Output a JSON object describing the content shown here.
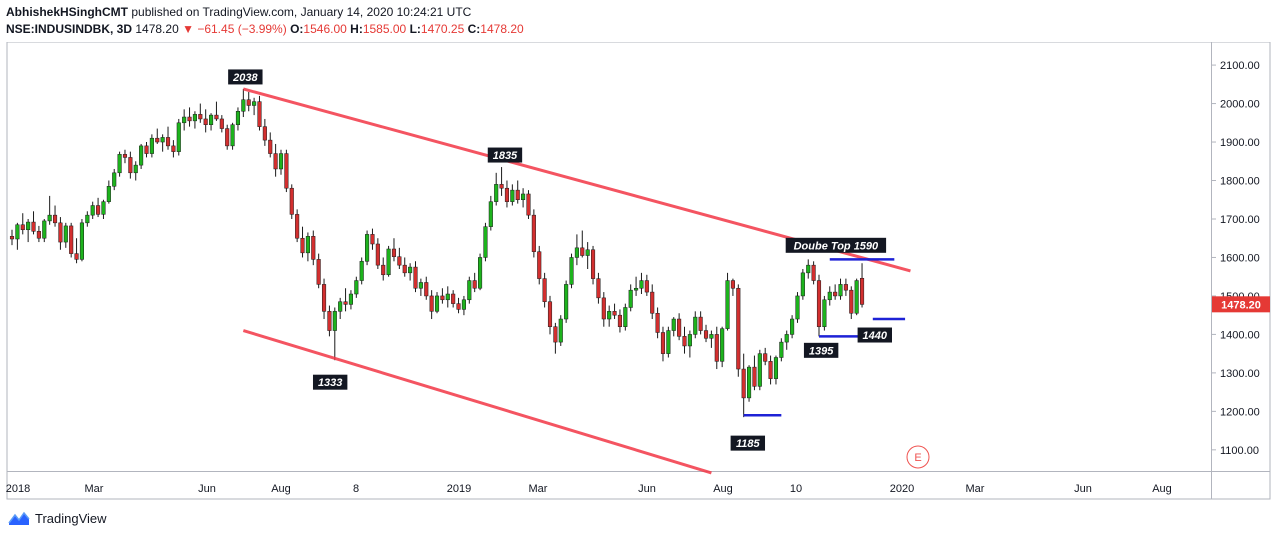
{
  "header": {
    "author": "AbhishekHSinghCMT",
    "published_text": "published on TradingView.com, January 14, 2020 10:24:21 UTC",
    "symbol": "NSE:INDUSINDBK, 3D",
    "last": "1478.20",
    "change_arrow": "▼",
    "change": "−61.45 (−3.99%)",
    "o_label": "O:",
    "o_value": "1546.00",
    "h_label": "H:",
    "h_value": "1585.00",
    "l_label": "L:",
    "l_value": "1470.25",
    "c_label": "C:",
    "c_value": "1478.20"
  },
  "footer": {
    "brand": "TradingView"
  },
  "colors": {
    "up": "#26a69a",
    "up_bright": "#1db31d",
    "down": "#d32f2f",
    "trendline": "#f23645",
    "support": "#1e22d6",
    "badge_bg": "#131722",
    "price_tag": "#e53935"
  },
  "chart_data": {
    "type": "candlestick",
    "ylim": [
      1045,
      2160
    ],
    "y_ticks": [
      "2100.00",
      "2000.00",
      "1900.00",
      "1800.00",
      "1700.00",
      "1600.00",
      "1500.00",
      "1400.00",
      "1300.00",
      "1200.00",
      "1100.00"
    ],
    "x_ticks": [
      "2018",
      "Mar",
      "Jun",
      "Aug",
      "8",
      "2019",
      "Mar",
      "Jun",
      "Aug",
      "10",
      "2020",
      "Mar",
      "Jun",
      "Aug"
    ],
    "last_price_label": "1478.20",
    "candles": [
      {
        "o": 1655,
        "h": 1672,
        "l": 1632,
        "c": 1648
      },
      {
        "o": 1648,
        "h": 1690,
        "l": 1620,
        "c": 1685
      },
      {
        "o": 1685,
        "h": 1715,
        "l": 1660,
        "c": 1672
      },
      {
        "o": 1672,
        "h": 1700,
        "l": 1640,
        "c": 1692
      },
      {
        "o": 1692,
        "h": 1720,
        "l": 1660,
        "c": 1668
      },
      {
        "o": 1668,
        "h": 1682,
        "l": 1640,
        "c": 1650
      },
      {
        "o": 1650,
        "h": 1700,
        "l": 1640,
        "c": 1695
      },
      {
        "o": 1695,
        "h": 1760,
        "l": 1685,
        "c": 1710
      },
      {
        "o": 1710,
        "h": 1735,
        "l": 1680,
        "c": 1690
      },
      {
        "o": 1690,
        "h": 1705,
        "l": 1620,
        "c": 1640
      },
      {
        "o": 1640,
        "h": 1690,
        "l": 1625,
        "c": 1682
      },
      {
        "o": 1682,
        "h": 1690,
        "l": 1600,
        "c": 1610
      },
      {
        "o": 1610,
        "h": 1650,
        "l": 1585,
        "c": 1595
      },
      {
        "o": 1595,
        "h": 1700,
        "l": 1590,
        "c": 1690
      },
      {
        "o": 1690,
        "h": 1720,
        "l": 1680,
        "c": 1710
      },
      {
        "o": 1710,
        "h": 1745,
        "l": 1700,
        "c": 1735
      },
      {
        "o": 1735,
        "h": 1755,
        "l": 1705,
        "c": 1712
      },
      {
        "o": 1712,
        "h": 1750,
        "l": 1700,
        "c": 1745
      },
      {
        "o": 1745,
        "h": 1800,
        "l": 1740,
        "c": 1785
      },
      {
        "o": 1785,
        "h": 1830,
        "l": 1775,
        "c": 1820
      },
      {
        "o": 1820,
        "h": 1875,
        "l": 1810,
        "c": 1868
      },
      {
        "o": 1868,
        "h": 1880,
        "l": 1845,
        "c": 1860
      },
      {
        "o": 1860,
        "h": 1875,
        "l": 1805,
        "c": 1820
      },
      {
        "o": 1820,
        "h": 1850,
        "l": 1800,
        "c": 1840
      },
      {
        "o": 1840,
        "h": 1895,
        "l": 1830,
        "c": 1890
      },
      {
        "o": 1890,
        "h": 1900,
        "l": 1860,
        "c": 1870
      },
      {
        "o": 1870,
        "h": 1920,
        "l": 1860,
        "c": 1910
      },
      {
        "o": 1910,
        "h": 1935,
        "l": 1895,
        "c": 1900
      },
      {
        "o": 1900,
        "h": 1920,
        "l": 1875,
        "c": 1912
      },
      {
        "o": 1912,
        "h": 1940,
        "l": 1880,
        "c": 1890
      },
      {
        "o": 1890,
        "h": 1905,
        "l": 1860,
        "c": 1875
      },
      {
        "o": 1875,
        "h": 1960,
        "l": 1865,
        "c": 1950
      },
      {
        "o": 1950,
        "h": 1985,
        "l": 1930,
        "c": 1965
      },
      {
        "o": 1965,
        "h": 1990,
        "l": 1940,
        "c": 1955
      },
      {
        "o": 1955,
        "h": 1980,
        "l": 1935,
        "c": 1972
      },
      {
        "o": 1972,
        "h": 2000,
        "l": 1950,
        "c": 1960
      },
      {
        "o": 1960,
        "h": 1985,
        "l": 1925,
        "c": 1945
      },
      {
        "o": 1945,
        "h": 1975,
        "l": 1930,
        "c": 1970
      },
      {
        "o": 1970,
        "h": 2005,
        "l": 1955,
        "c": 1960
      },
      {
        "o": 1960,
        "h": 1970,
        "l": 1925,
        "c": 1935
      },
      {
        "o": 1935,
        "h": 1945,
        "l": 1880,
        "c": 1890
      },
      {
        "o": 1890,
        "h": 1950,
        "l": 1880,
        "c": 1945
      },
      {
        "o": 1945,
        "h": 1990,
        "l": 1930,
        "c": 1980
      },
      {
        "o": 1980,
        "h": 2038,
        "l": 1965,
        "c": 2010
      },
      {
        "o": 2010,
        "h": 2030,
        "l": 1980,
        "c": 1995
      },
      {
        "o": 1995,
        "h": 2015,
        "l": 1970,
        "c": 2005
      },
      {
        "o": 2005,
        "h": 2020,
        "l": 1930,
        "c": 1940
      },
      {
        "o": 1940,
        "h": 1960,
        "l": 1890,
        "c": 1905
      },
      {
        "o": 1905,
        "h": 1925,
        "l": 1860,
        "c": 1870
      },
      {
        "o": 1870,
        "h": 1895,
        "l": 1810,
        "c": 1830
      },
      {
        "o": 1830,
        "h": 1880,
        "l": 1815,
        "c": 1870
      },
      {
        "o": 1870,
        "h": 1880,
        "l": 1770,
        "c": 1780
      },
      {
        "o": 1780,
        "h": 1790,
        "l": 1700,
        "c": 1712
      },
      {
        "o": 1712,
        "h": 1725,
        "l": 1640,
        "c": 1650
      },
      {
        "o": 1650,
        "h": 1680,
        "l": 1600,
        "c": 1612
      },
      {
        "o": 1612,
        "h": 1665,
        "l": 1590,
        "c": 1655
      },
      {
        "o": 1655,
        "h": 1670,
        "l": 1580,
        "c": 1595
      },
      {
        "o": 1595,
        "h": 1610,
        "l": 1520,
        "c": 1530
      },
      {
        "o": 1530,
        "h": 1545,
        "l": 1440,
        "c": 1460
      },
      {
        "o": 1460,
        "h": 1475,
        "l": 1395,
        "c": 1410
      },
      {
        "o": 1410,
        "h": 1470,
        "l": 1333,
        "c": 1460
      },
      {
        "o": 1460,
        "h": 1495,
        "l": 1440,
        "c": 1485
      },
      {
        "o": 1485,
        "h": 1520,
        "l": 1460,
        "c": 1478
      },
      {
        "o": 1478,
        "h": 1515,
        "l": 1465,
        "c": 1505
      },
      {
        "o": 1505,
        "h": 1550,
        "l": 1495,
        "c": 1540
      },
      {
        "o": 1540,
        "h": 1600,
        "l": 1530,
        "c": 1590
      },
      {
        "o": 1590,
        "h": 1670,
        "l": 1580,
        "c": 1660
      },
      {
        "o": 1660,
        "h": 1675,
        "l": 1620,
        "c": 1635
      },
      {
        "o": 1635,
        "h": 1650,
        "l": 1570,
        "c": 1580
      },
      {
        "o": 1580,
        "h": 1600,
        "l": 1540,
        "c": 1555
      },
      {
        "o": 1555,
        "h": 1630,
        "l": 1550,
        "c": 1622
      },
      {
        "o": 1622,
        "h": 1650,
        "l": 1590,
        "c": 1602
      },
      {
        "o": 1602,
        "h": 1625,
        "l": 1570,
        "c": 1580
      },
      {
        "o": 1580,
        "h": 1600,
        "l": 1550,
        "c": 1560
      },
      {
        "o": 1560,
        "h": 1585,
        "l": 1540,
        "c": 1575
      },
      {
        "o": 1575,
        "h": 1590,
        "l": 1510,
        "c": 1520
      },
      {
        "o": 1520,
        "h": 1545,
        "l": 1500,
        "c": 1535
      },
      {
        "o": 1535,
        "h": 1550,
        "l": 1490,
        "c": 1500
      },
      {
        "o": 1500,
        "h": 1515,
        "l": 1440,
        "c": 1460
      },
      {
        "o": 1460,
        "h": 1510,
        "l": 1455,
        "c": 1500
      },
      {
        "o": 1500,
        "h": 1520,
        "l": 1480,
        "c": 1490
      },
      {
        "o": 1490,
        "h": 1525,
        "l": 1470,
        "c": 1505
      },
      {
        "o": 1505,
        "h": 1515,
        "l": 1470,
        "c": 1480
      },
      {
        "o": 1480,
        "h": 1495,
        "l": 1455,
        "c": 1465
      },
      {
        "o": 1465,
        "h": 1500,
        "l": 1450,
        "c": 1490
      },
      {
        "o": 1490,
        "h": 1550,
        "l": 1480,
        "c": 1540
      },
      {
        "o": 1540,
        "h": 1560,
        "l": 1510,
        "c": 1520
      },
      {
        "o": 1520,
        "h": 1610,
        "l": 1515,
        "c": 1600
      },
      {
        "o": 1600,
        "h": 1690,
        "l": 1590,
        "c": 1680
      },
      {
        "o": 1680,
        "h": 1760,
        "l": 1670,
        "c": 1745
      },
      {
        "o": 1745,
        "h": 1820,
        "l": 1735,
        "c": 1790
      },
      {
        "o": 1790,
        "h": 1835,
        "l": 1760,
        "c": 1780
      },
      {
        "o": 1780,
        "h": 1800,
        "l": 1730,
        "c": 1745
      },
      {
        "o": 1745,
        "h": 1790,
        "l": 1735,
        "c": 1775
      },
      {
        "o": 1775,
        "h": 1800,
        "l": 1740,
        "c": 1750
      },
      {
        "o": 1750,
        "h": 1780,
        "l": 1730,
        "c": 1765
      },
      {
        "o": 1765,
        "h": 1775,
        "l": 1700,
        "c": 1710
      },
      {
        "o": 1710,
        "h": 1725,
        "l": 1600,
        "c": 1615
      },
      {
        "o": 1615,
        "h": 1630,
        "l": 1530,
        "c": 1545
      },
      {
        "o": 1545,
        "h": 1560,
        "l": 1470,
        "c": 1485
      },
      {
        "o": 1485,
        "h": 1500,
        "l": 1400,
        "c": 1420
      },
      {
        "o": 1420,
        "h": 1430,
        "l": 1350,
        "c": 1380
      },
      {
        "o": 1380,
        "h": 1450,
        "l": 1370,
        "c": 1440
      },
      {
        "o": 1440,
        "h": 1540,
        "l": 1430,
        "c": 1530
      },
      {
        "o": 1530,
        "h": 1610,
        "l": 1520,
        "c": 1600
      },
      {
        "o": 1600,
        "h": 1660,
        "l": 1580,
        "c": 1625
      },
      {
        "o": 1625,
        "h": 1670,
        "l": 1600,
        "c": 1605
      },
      {
        "o": 1605,
        "h": 1640,
        "l": 1570,
        "c": 1620
      },
      {
        "o": 1620,
        "h": 1630,
        "l": 1530,
        "c": 1545
      },
      {
        "o": 1545,
        "h": 1560,
        "l": 1480,
        "c": 1495
      },
      {
        "o": 1495,
        "h": 1510,
        "l": 1420,
        "c": 1440
      },
      {
        "o": 1440,
        "h": 1475,
        "l": 1420,
        "c": 1460
      },
      {
        "o": 1460,
        "h": 1480,
        "l": 1440,
        "c": 1450
      },
      {
        "o": 1450,
        "h": 1465,
        "l": 1405,
        "c": 1420
      },
      {
        "o": 1420,
        "h": 1480,
        "l": 1410,
        "c": 1470
      },
      {
        "o": 1470,
        "h": 1530,
        "l": 1460,
        "c": 1515
      },
      {
        "o": 1515,
        "h": 1550,
        "l": 1500,
        "c": 1520
      },
      {
        "o": 1520,
        "h": 1560,
        "l": 1505,
        "c": 1540
      },
      {
        "o": 1540,
        "h": 1555,
        "l": 1500,
        "c": 1510
      },
      {
        "o": 1510,
        "h": 1530,
        "l": 1440,
        "c": 1455
      },
      {
        "o": 1455,
        "h": 1470,
        "l": 1390,
        "c": 1405
      },
      {
        "o": 1405,
        "h": 1420,
        "l": 1330,
        "c": 1350
      },
      {
        "o": 1350,
        "h": 1420,
        "l": 1340,
        "c": 1410
      },
      {
        "o": 1410,
        "h": 1445,
        "l": 1395,
        "c": 1440
      },
      {
        "o": 1440,
        "h": 1455,
        "l": 1385,
        "c": 1395
      },
      {
        "o": 1395,
        "h": 1420,
        "l": 1350,
        "c": 1370
      },
      {
        "o": 1370,
        "h": 1410,
        "l": 1340,
        "c": 1400
      },
      {
        "o": 1400,
        "h": 1460,
        "l": 1390,
        "c": 1445
      },
      {
        "o": 1445,
        "h": 1460,
        "l": 1400,
        "c": 1410
      },
      {
        "o": 1410,
        "h": 1425,
        "l": 1380,
        "c": 1390
      },
      {
        "o": 1390,
        "h": 1410,
        "l": 1365,
        "c": 1400
      },
      {
        "o": 1400,
        "h": 1420,
        "l": 1310,
        "c": 1330
      },
      {
        "o": 1330,
        "h": 1420,
        "l": 1315,
        "c": 1415
      },
      {
        "o": 1415,
        "h": 1560,
        "l": 1410,
        "c": 1540
      },
      {
        "o": 1540,
        "h": 1545,
        "l": 1500,
        "c": 1520
      },
      {
        "o": 1520,
        "h": 1530,
        "l": 1290,
        "c": 1310
      },
      {
        "o": 1310,
        "h": 1350,
        "l": 1185,
        "c": 1235
      },
      {
        "o": 1235,
        "h": 1320,
        "l": 1225,
        "c": 1315
      },
      {
        "o": 1315,
        "h": 1345,
        "l": 1255,
        "c": 1265
      },
      {
        "o": 1265,
        "h": 1360,
        "l": 1255,
        "c": 1350
      },
      {
        "o": 1350,
        "h": 1365,
        "l": 1320,
        "c": 1330
      },
      {
        "o": 1330,
        "h": 1345,
        "l": 1270,
        "c": 1285
      },
      {
        "o": 1285,
        "h": 1345,
        "l": 1270,
        "c": 1340
      },
      {
        "o": 1340,
        "h": 1390,
        "l": 1330,
        "c": 1380
      },
      {
        "o": 1380,
        "h": 1410,
        "l": 1360,
        "c": 1400
      },
      {
        "o": 1400,
        "h": 1450,
        "l": 1390,
        "c": 1440
      },
      {
        "o": 1440,
        "h": 1510,
        "l": 1430,
        "c": 1500
      },
      {
        "o": 1500,
        "h": 1570,
        "l": 1490,
        "c": 1560
      },
      {
        "o": 1560,
        "h": 1595,
        "l": 1545,
        "c": 1580
      },
      {
        "o": 1580,
        "h": 1590,
        "l": 1530,
        "c": 1540
      },
      {
        "o": 1540,
        "h": 1555,
        "l": 1395,
        "c": 1420
      },
      {
        "o": 1420,
        "h": 1500,
        "l": 1410,
        "c": 1490
      },
      {
        "o": 1490,
        "h": 1525,
        "l": 1475,
        "c": 1510
      },
      {
        "o": 1510,
        "h": 1530,
        "l": 1490,
        "c": 1500
      },
      {
        "o": 1500,
        "h": 1545,
        "l": 1490,
        "c": 1530
      },
      {
        "o": 1530,
        "h": 1545,
        "l": 1500,
        "c": 1515
      },
      {
        "o": 1515,
        "h": 1525,
        "l": 1440,
        "c": 1455
      },
      {
        "o": 1455,
        "h": 1545,
        "l": 1450,
        "c": 1540
      },
      {
        "o": 1546,
        "h": 1585,
        "l": 1470,
        "c": 1478
      }
    ],
    "annotations": [
      {
        "text": "2038",
        "price": 2038,
        "bar": 43
      },
      {
        "text": "1835",
        "price": 1835,
        "bar": 92
      },
      {
        "text": "1333",
        "price": 1333,
        "bar": 61
      },
      {
        "text": "1185",
        "price": 1185,
        "bar": 139
      },
      {
        "text": "1395",
        "price": 1395,
        "bar": 153
      },
      {
        "text": "1440",
        "price": 1440,
        "bar": 160
      },
      {
        "text": "Doube Top 1590",
        "price": 1590,
        "bar": 155
      }
    ],
    "upper_channel": [
      {
        "bar": 43,
        "price": 2038
      },
      {
        "bar": 167,
        "price": 1565
      }
    ],
    "lower_channel": [
      {
        "bar": 43,
        "price": 1410
      },
      {
        "bar": 130,
        "price": 1040
      }
    ],
    "support_lines": [
      {
        "price": 1595,
        "bar_from": 152,
        "bar_to": 164
      },
      {
        "price": 1440,
        "bar_from": 160,
        "bar_to": 166
      },
      {
        "price": 1395,
        "bar_from": 150,
        "bar_to": 158
      },
      {
        "price": 1190,
        "bar_from": 136,
        "bar_to": 143
      }
    ],
    "event_marker": "E"
  }
}
